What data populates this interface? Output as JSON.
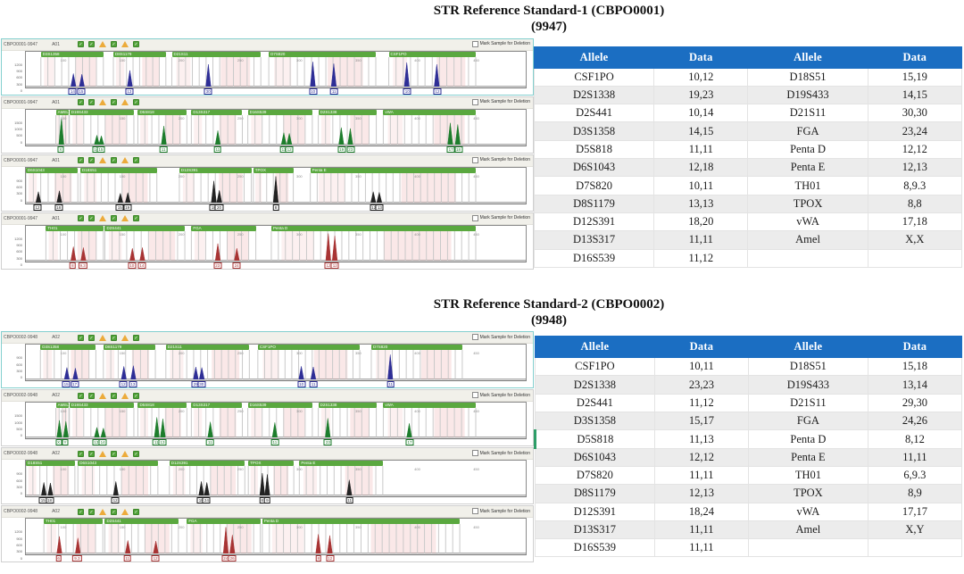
{
  "chrome": {
    "checkbox_label": "Mark Sample for Deletion",
    "toolbar_icons": [
      "pass",
      "pass",
      "warn",
      "pass",
      "warn",
      "pass"
    ],
    "xticks": [
      "100",
      "150",
      "200",
      "250",
      "300",
      "350",
      "400",
      "450"
    ],
    "colors": {
      "table_header_blue": "#1b6ec2",
      "row_stripe": "#ececec",
      "marker_bar_green": "#5aa83f",
      "row_highlight_green": "#2e9e68",
      "dye_blue": "#2e2e96",
      "dye_green": "#1d7d2c",
      "dye_black": "#222222",
      "dye_red": "#a83434"
    }
  },
  "sections": [
    {
      "title_line1": "STR Reference Standard-1 (CBPO0001)",
      "title_line2": "(9947)",
      "panels": [
        {
          "sample_id": "CBPO0001-9947",
          "run_id": "A01",
          "dye": "blue",
          "color": "#2e2e96",
          "selected": true,
          "yticks": [
            "1200",
            "900",
            "600",
            "300",
            "0"
          ],
          "markers": [
            {
              "name": "D3S1358",
              "x": 0.03,
              "w": 0.125
            },
            {
              "name": "D8S1179",
              "x": 0.175,
              "w": 0.105
            },
            {
              "name": "D21S11",
              "x": 0.292,
              "w": 0.178
            },
            {
              "name": "D7S820",
              "x": 0.486,
              "w": 0.214
            },
            {
              "name": "CSF1PO",
              "x": 0.726,
              "w": 0.174
            }
          ],
          "peaks": [
            {
              "x": 0.095,
              "h": 0.42,
              "label": "14"
            },
            {
              "x": 0.112,
              "h": 0.4,
              "label": "15"
            },
            {
              "x": 0.208,
              "h": 0.52,
              "label": "13"
            },
            {
              "x": 0.365,
              "h": 0.72,
              "label": "30"
            },
            {
              "x": 0.574,
              "h": 0.8,
              "label": "10"
            },
            {
              "x": 0.616,
              "h": 0.74,
              "label": "11"
            },
            {
              "x": 0.762,
              "h": 0.78,
              "label": "10"
            },
            {
              "x": 0.822,
              "h": 0.72,
              "label": "12"
            }
          ]
        },
        {
          "sample_id": "CBPO0001-9947",
          "run_id": "A01",
          "dye": "green",
          "color": "#1d7d2c",
          "selected": false,
          "yticks": [
            "1500",
            "1000",
            "500",
            "0"
          ],
          "markers": [
            {
              "name": "AMEL",
              "x": 0.06,
              "w": 0.026
            },
            {
              "name": "D19S433",
              "x": 0.087,
              "w": 0.129
            },
            {
              "name": "D5S818",
              "x": 0.224,
              "w": 0.098
            },
            {
              "name": "D13S317",
              "x": 0.331,
              "w": 0.102
            },
            {
              "name": "D16S539",
              "x": 0.444,
              "w": 0.129
            },
            {
              "name": "D2S1338",
              "x": 0.585,
              "w": 0.116
            },
            {
              "name": "vWA",
              "x": 0.715,
              "w": 0.185
            }
          ],
          "peaks": [
            {
              "x": 0.071,
              "h": 0.85,
              "label": "X"
            },
            {
              "x": 0.142,
              "h": 0.3,
              "label": "14"
            },
            {
              "x": 0.151,
              "h": 0.28,
              "label": "15"
            },
            {
              "x": 0.276,
              "h": 0.6,
              "label": "11"
            },
            {
              "x": 0.384,
              "h": 0.45,
              "label": "11"
            },
            {
              "x": 0.516,
              "h": 0.38,
              "label": "11"
            },
            {
              "x": 0.527,
              "h": 0.36,
              "label": "12"
            },
            {
              "x": 0.631,
              "h": 0.55,
              "label": "19"
            },
            {
              "x": 0.649,
              "h": 0.52,
              "label": "23"
            },
            {
              "x": 0.849,
              "h": 0.7,
              "label": "17"
            },
            {
              "x": 0.864,
              "h": 0.65,
              "label": "18"
            }
          ]
        },
        {
          "sample_id": "CBPO0001-9947",
          "run_id": "A01",
          "dye": "black",
          "color": "#222222",
          "selected": false,
          "yticks": [
            "900",
            "600",
            "300",
            "0"
          ],
          "markers": [
            {
              "name": "D6S1043",
              "x": 0.0,
              "w": 0.104
            },
            {
              "name": "D18S51",
              "x": 0.109,
              "w": 0.153
            },
            {
              "name": "D12S391",
              "x": 0.307,
              "w": 0.144
            },
            {
              "name": "TPOX",
              "x": 0.455,
              "w": 0.08
            },
            {
              "name": "Penta E",
              "x": 0.569,
              "w": 0.331
            }
          ],
          "peaks": [
            {
              "x": 0.025,
              "h": 0.35,
              "label": "12"
            },
            {
              "x": 0.067,
              "h": 0.38,
              "label": "18"
            },
            {
              "x": 0.189,
              "h": 0.3,
              "label": "15"
            },
            {
              "x": 0.204,
              "h": 0.32,
              "label": "19"
            },
            {
              "x": 0.376,
              "h": 0.7,
              "label": "18"
            },
            {
              "x": 0.387,
              "h": 0.4,
              "label": "20"
            },
            {
              "x": 0.5,
              "h": 0.85,
              "label": "8"
            },
            {
              "x": 0.695,
              "h": 0.35,
              "label": "12"
            },
            {
              "x": 0.707,
              "h": 0.33,
              "label": "13"
            }
          ]
        },
        {
          "sample_id": "CBPO0001-9947",
          "run_id": "A01",
          "dye": "red",
          "color": "#a83434",
          "selected": false,
          "yticks": [
            "1200",
            "900",
            "600",
            "300",
            "0"
          ],
          "markers": [
            {
              "name": "TH01",
              "x": 0.04,
              "w": 0.115
            },
            {
              "name": "D2S441",
              "x": 0.158,
              "w": 0.16
            },
            {
              "name": "FGA",
              "x": 0.331,
              "w": 0.129
            },
            {
              "name": "Penta D",
              "x": 0.491,
              "w": 0.409
            }
          ],
          "peaks": [
            {
              "x": 0.095,
              "h": 0.45,
              "label": "8"
            },
            {
              "x": 0.115,
              "h": 0.42,
              "label": "9.3"
            },
            {
              "x": 0.213,
              "h": 0.4,
              "label": "10"
            },
            {
              "x": 0.233,
              "h": 0.42,
              "label": "14"
            },
            {
              "x": 0.384,
              "h": 0.55,
              "label": "23"
            },
            {
              "x": 0.422,
              "h": 0.4,
              "label": "24"
            },
            {
              "x": 0.605,
              "h": 0.88,
              "label": "12"
            },
            {
              "x": 0.618,
              "h": 0.8,
              "label": "12"
            }
          ]
        }
      ],
      "table": {
        "headers": [
          "Allele",
          "Data",
          "Allele",
          "Data"
        ],
        "rows": [
          [
            "CSF1PO",
            "10,12",
            "D18S51",
            "15,19"
          ],
          [
            "D2S1338",
            "19,23",
            "D19S433",
            "14,15"
          ],
          [
            "D2S441",
            "10,14",
            "D21S11",
            "30,30"
          ],
          [
            "D3S1358",
            "14,15",
            "FGA",
            "23,24"
          ],
          [
            "D5S818",
            "11,11",
            "Penta D",
            "12,12"
          ],
          [
            "D6S1043",
            "12,18",
            "Penta E",
            "12,13"
          ],
          [
            "D7S820",
            "10,11",
            "TH01",
            "8,9.3"
          ],
          [
            "D8S1179",
            "13,13",
            "TPOX",
            "8,8"
          ],
          [
            "D12S391",
            "18,20",
            "vWA",
            "17,18"
          ],
          [
            "D13S317",
            "11,11",
            "Amel",
            "X,X"
          ],
          [
            "D16S539",
            "11,12",
            "",
            ""
          ]
        ],
        "highlight_row": -1
      }
    },
    {
      "title_line1": "STR Reference Standard-2 (CBPO0002)",
      "title_line2": "(9948)",
      "panels": [
        {
          "sample_id": "CBPO0002-9948",
          "run_id": "A02",
          "dye": "blue",
          "color": "#2e2e96",
          "selected": true,
          "yticks": [
            "900",
            "600",
            "300",
            "0"
          ],
          "markers": [
            {
              "name": "D3S1358",
              "x": 0.029,
              "w": 0.111
            },
            {
              "name": "D8S1179",
              "x": 0.155,
              "w": 0.104
            },
            {
              "name": "D21S11",
              "x": 0.28,
              "w": 0.167
            },
            {
              "name": "CSF1PO",
              "x": 0.464,
              "w": 0.204
            },
            {
              "name": "D7S820",
              "x": 0.691,
              "w": 0.182
            }
          ],
          "peaks": [
            {
              "x": 0.082,
              "h": 0.38,
              "label": "15"
            },
            {
              "x": 0.099,
              "h": 0.36,
              "label": "17"
            },
            {
              "x": 0.196,
              "h": 0.42,
              "label": "12"
            },
            {
              "x": 0.215,
              "h": 0.44,
              "label": "13"
            },
            {
              "x": 0.34,
              "h": 0.4,
              "label": "29"
            },
            {
              "x": 0.352,
              "h": 0.38,
              "label": "30"
            },
            {
              "x": 0.551,
              "h": 0.42,
              "label": "10"
            },
            {
              "x": 0.575,
              "h": 0.4,
              "label": "11"
            },
            {
              "x": 0.729,
              "h": 0.8,
              "label": "11"
            }
          ]
        },
        {
          "sample_id": "CBPO0002-9948",
          "run_id": "A02",
          "dye": "green",
          "color": "#1d7d2c",
          "selected": false,
          "yticks": [
            "1500",
            "1000",
            "500",
            "0"
          ],
          "markers": [
            {
              "name": "AMEL",
              "x": 0.06,
              "w": 0.026
            },
            {
              "name": "D19S433",
              "x": 0.087,
              "w": 0.129
            },
            {
              "name": "D5S818",
              "x": 0.224,
              "w": 0.098
            },
            {
              "name": "D13S317",
              "x": 0.331,
              "w": 0.102
            },
            {
              "name": "D16S539",
              "x": 0.444,
              "w": 0.129
            },
            {
              "name": "D2S1338",
              "x": 0.585,
              "w": 0.116
            },
            {
              "name": "vWA",
              "x": 0.715,
              "w": 0.185
            }
          ],
          "peaks": [
            {
              "x": 0.067,
              "h": 0.55,
              "label": "X"
            },
            {
              "x": 0.08,
              "h": 0.52,
              "label": "Y"
            },
            {
              "x": 0.142,
              "h": 0.32,
              "label": "13"
            },
            {
              "x": 0.155,
              "h": 0.3,
              "label": "14"
            },
            {
              "x": 0.262,
              "h": 0.65,
              "label": "11"
            },
            {
              "x": 0.274,
              "h": 0.6,
              "label": "13"
            },
            {
              "x": 0.369,
              "h": 0.5,
              "label": "11"
            },
            {
              "x": 0.498,
              "h": 0.48,
              "label": "11"
            },
            {
              "x": 0.604,
              "h": 0.62,
              "label": "23"
            },
            {
              "x": 0.767,
              "h": 0.45,
              "label": "17"
            }
          ]
        },
        {
          "sample_id": "CBPO0002-9948",
          "run_id": "A02",
          "dye": "black",
          "color": "#222222",
          "selected": false,
          "yticks": [
            "900",
            "600",
            "300",
            "0"
          ],
          "markers": [
            {
              "name": "D18S51",
              "x": 0.0,
              "w": 0.098
            },
            {
              "name": "D6S1043",
              "x": 0.104,
              "w": 0.16
            },
            {
              "name": "D12S391",
              "x": 0.287,
              "w": 0.151
            },
            {
              "name": "TPOX",
              "x": 0.445,
              "w": 0.091
            },
            {
              "name": "Penta E",
              "x": 0.547,
              "w": 0.167
            }
          ],
          "peaks": [
            {
              "x": 0.036,
              "h": 0.42,
              "label": "15"
            },
            {
              "x": 0.049,
              "h": 0.4,
              "label": "18"
            },
            {
              "x": 0.18,
              "h": 0.45,
              "label": "12"
            },
            {
              "x": 0.351,
              "h": 0.45,
              "label": "18"
            },
            {
              "x": 0.362,
              "h": 0.42,
              "label": "24"
            },
            {
              "x": 0.473,
              "h": 0.72,
              "label": "8"
            },
            {
              "x": 0.483,
              "h": 0.68,
              "label": "9"
            },
            {
              "x": 0.647,
              "h": 0.5,
              "label": "11"
            }
          ]
        },
        {
          "sample_id": "CBPO0002-9948",
          "run_id": "A02",
          "dye": "red",
          "color": "#a83434",
          "selected": false,
          "yticks": [
            "1200",
            "900",
            "600",
            "300",
            "0"
          ],
          "markers": [
            {
              "name": "TH01",
              "x": 0.036,
              "w": 0.118
            },
            {
              "name": "D2S441",
              "x": 0.158,
              "w": 0.147
            },
            {
              "name": "FGA",
              "x": 0.322,
              "w": 0.147
            },
            {
              "name": "Penta D",
              "x": 0.473,
              "w": 0.395
            }
          ],
          "peaks": [
            {
              "x": 0.067,
              "h": 0.55,
              "label": "6"
            },
            {
              "x": 0.104,
              "h": 0.5,
              "label": "9.3"
            },
            {
              "x": 0.204,
              "h": 0.42,
              "label": "11"
            },
            {
              "x": 0.26,
              "h": 0.4,
              "label": "12"
            },
            {
              "x": 0.4,
              "h": 0.85,
              "label": "24"
            },
            {
              "x": 0.413,
              "h": 0.6,
              "label": "26"
            },
            {
              "x": 0.585,
              "h": 0.62,
              "label": "8"
            },
            {
              "x": 0.608,
              "h": 0.58,
              "label": "12"
            }
          ]
        }
      ],
      "table": {
        "headers": [
          "Allele",
          "Data",
          "Allele",
          "Data"
        ],
        "rows": [
          [
            "CSF1PO",
            "10,11",
            "D18S51",
            "15,18"
          ],
          [
            "D2S1338",
            "23,23",
            "D19S433",
            "13,14"
          ],
          [
            "D2S441",
            "11,12",
            "D21S11",
            "29,30"
          ],
          [
            "D3S1358",
            "15,17",
            "FGA",
            "24,26"
          ],
          [
            "D5S818",
            "11,13",
            "Penta D",
            "8,12"
          ],
          [
            "D6S1043",
            "12,12",
            "Penta E",
            "11,11"
          ],
          [
            "D7S820",
            "11,11",
            "TH01",
            "6,9.3"
          ],
          [
            "D8S1179",
            "12,13",
            "TPOX",
            "8,9"
          ],
          [
            "D12S391",
            "18,24",
            "vWA",
            "17,17"
          ],
          [
            "D13S317",
            "11,11",
            "Amel",
            "X,Y"
          ],
          [
            "D16S539",
            "11,11",
            "",
            ""
          ]
        ],
        "highlight_row": 4
      }
    }
  ]
}
